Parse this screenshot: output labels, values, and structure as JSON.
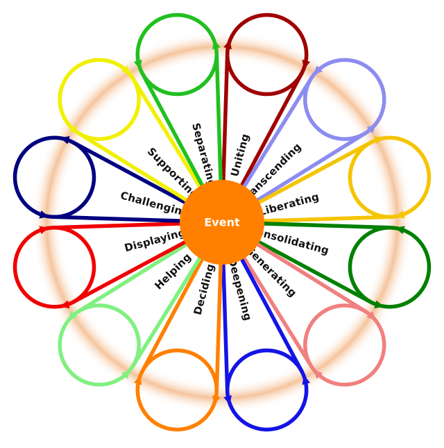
{
  "center": {
    "label": "Event",
    "color": "#ff8000"
  },
  "halo_color": "#f3b98a",
  "petals": [
    {
      "label": "Uniting",
      "color": "#a00000"
    },
    {
      "label": "Transcending",
      "color": "#8c8cf0"
    },
    {
      "label": "Liberating",
      "color": "#f5c400"
    },
    {
      "label": "Consolidating",
      "color": "#008000"
    },
    {
      "label": "Generating",
      "color": "#f08080"
    },
    {
      "label": "Deepening",
      "color": "#1414e6"
    },
    {
      "label": "Deciding",
      "color": "#ff8000"
    },
    {
      "label": "Helping",
      "color": "#80f080"
    },
    {
      "label": "Displaying",
      "color": "#f00000"
    },
    {
      "label": "Challenging",
      "color": "#000080"
    },
    {
      "label": "Supporting",
      "color": "#f0f000"
    },
    {
      "label": "Separating",
      "color": "#20c020"
    }
  ]
}
